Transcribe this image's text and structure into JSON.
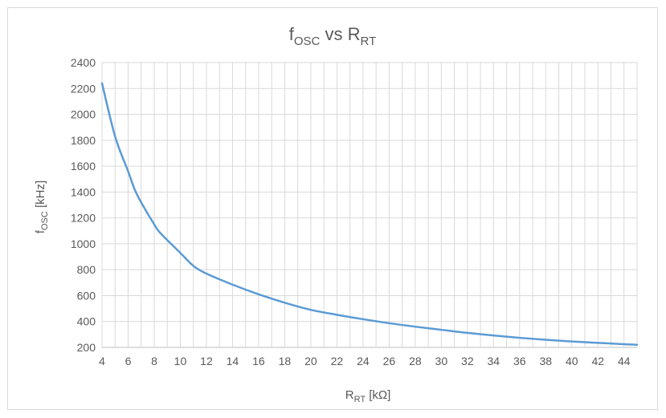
{
  "chart_data": {
    "type": "line",
    "title": {
      "main": "f",
      "sub": "OSC",
      "rest": " vs R",
      "sub2": "RT"
    },
    "xlabel": {
      "main": "R",
      "sub": "RT",
      "rest": " [kΩ]"
    },
    "ylabel": {
      "main": "f",
      "sub": "OSC",
      "rest": " [kHz]"
    },
    "xlim": [
      4,
      45
    ],
    "ylim": [
      200,
      2400
    ],
    "x_ticks": [
      4,
      6,
      8,
      10,
      12,
      14,
      16,
      18,
      20,
      22,
      24,
      26,
      28,
      30,
      32,
      34,
      36,
      38,
      40,
      42,
      44
    ],
    "y_ticks": [
      200,
      400,
      600,
      800,
      1000,
      1200,
      1400,
      1600,
      1800,
      2000,
      2200,
      2400
    ],
    "grid": true,
    "series_color": "#5b9bd5",
    "series": [
      {
        "x": [
          4,
          5,
          6,
          6.5,
          7,
          8,
          8.5,
          10,
          11,
          12,
          14,
          16,
          18,
          20,
          22,
          24,
          26,
          28,
          30,
          32,
          34,
          36,
          38,
          40,
          42,
          44,
          45
        ],
        "y": [
          2240,
          1830,
          1560,
          1420,
          1320,
          1150,
          1080,
          930,
          830,
          770,
          685,
          610,
          545,
          490,
          452,
          418,
          387,
          360,
          336,
          312,
          292,
          274,
          259,
          246,
          235,
          225,
          220
        ]
      }
    ]
  }
}
